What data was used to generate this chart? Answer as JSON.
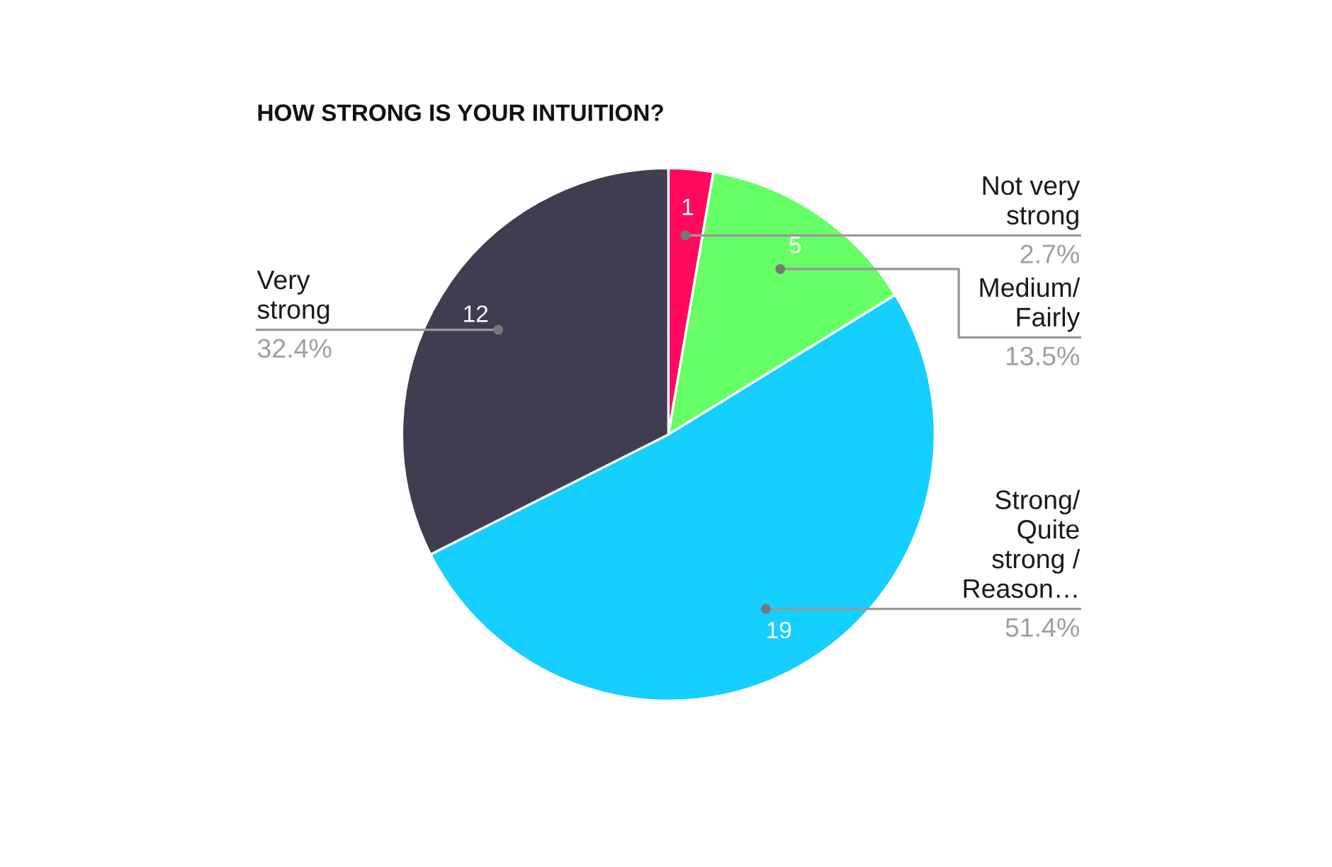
{
  "chart_data": {
    "type": "pie",
    "title": "HOW STRONG IS YOUR INTUITION?",
    "categories": [
      "Not very\nstrong",
      "Medium/\nFairly",
      "Strong/\nQuite\nstrong /\nReason…",
      "Very\nstrong"
    ],
    "values": [
      1,
      5,
      19,
      12
    ],
    "colors": [
      "#ff0a5e",
      "#66ff66",
      "#14cfff",
      "#413d51"
    ],
    "data_labels": true,
    "annotations": [
      "2.7%",
      "13.5%",
      "51.4%",
      "32.4%"
    ]
  }
}
